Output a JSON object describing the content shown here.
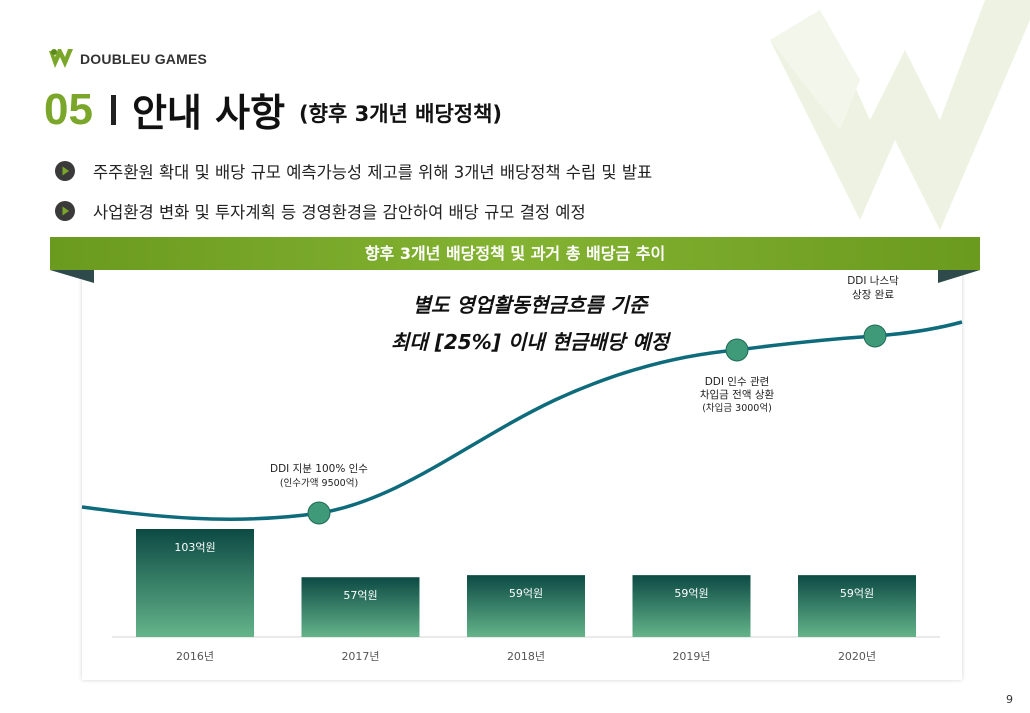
{
  "brand": {
    "logo_text": "DOUBLEU GAMES"
  },
  "header": {
    "section_number": "05",
    "title": "안내 사항",
    "subtitle": "(향후 3개년 배당정책)"
  },
  "bullets": [
    {
      "text": "주주환원 확대 및 배당 규모 예측가능성 제고를 위해 3개년 배당정책 수립 및 발표"
    },
    {
      "text": "사업환경 변화 및 투자계획 등 경영환경을 감안하여 배당 규모 결정 예정"
    }
  ],
  "banner": {
    "title": "향후 3개년 배당정책 및 과거 총 배당금 추이"
  },
  "annotation": {
    "line1": "별도 영업활동현금흐름 기준",
    "line2": "최대 [25%] 이내 현금배당 예정"
  },
  "colors": {
    "accent_green": "#7aa72a",
    "bar_top": "#0c4a44",
    "bar_bottom": "#64b48a",
    "curve": "#0d6b7c",
    "milestone": "#3e9a78"
  },
  "chart_data": {
    "type": "bar",
    "categories": [
      "2016년",
      "2017년",
      "2018년",
      "2019년",
      "2020년"
    ],
    "values": [
      103,
      57,
      59,
      59,
      59
    ],
    "value_labels": [
      "103억원",
      "57억원",
      "59억원",
      "59억원",
      "59억원"
    ],
    "unit": "억원",
    "ylim": [
      0,
      115
    ],
    "grid": false,
    "legend": "none",
    "milestones": [
      {
        "lines": [
          "DDI 지분 100% 인수",
          "(인수가액 9500억)"
        ]
      },
      {
        "lines": [
          "DDI 인수 관련",
          "차입금 전액 상환",
          "(차입금 3000억)"
        ]
      },
      {
        "lines": [
          "DDI 나스닥",
          "상장 완료"
        ]
      }
    ]
  },
  "page": {
    "number": "9"
  }
}
